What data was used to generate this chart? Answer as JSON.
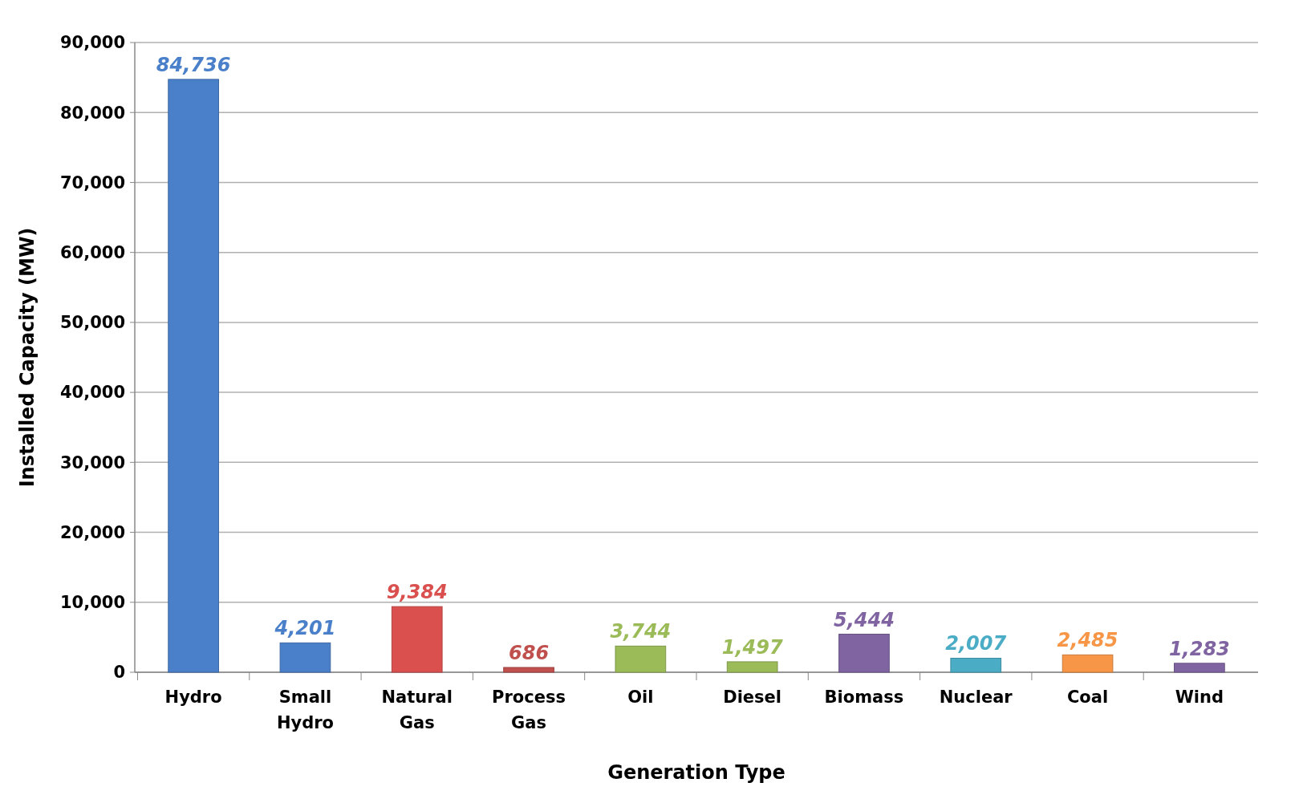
{
  "chart_data": {
    "type": "bar",
    "xlabel": "Generation Type",
    "ylabel": "Installed Capacity (MW)",
    "categories": [
      "Hydro",
      "Small Hydro",
      "Natural Gas",
      "Process Gas",
      "Oil",
      "Diesel",
      "Biomass",
      "Nuclear",
      "Coal",
      "Wind"
    ],
    "values": [
      84736,
      4201,
      9384,
      686,
      3744,
      1497,
      5444,
      2007,
      2485,
      1283
    ],
    "value_labels": [
      "84,736",
      "4,201",
      "9,384",
      "686",
      "3,744",
      "1,497",
      "5,444",
      "2,007",
      "2,485",
      "1,283"
    ],
    "colors": [
      "#4a7fc9",
      "#4a7fc9",
      "#d9504f",
      "#c0504d",
      "#9bbb59",
      "#9bbb59",
      "#8064a2",
      "#4bacc6",
      "#f79646",
      "#8064a2"
    ],
    "ylim": [
      0,
      90000
    ],
    "yticks": [
      {
        "value": 0,
        "label": "0"
      },
      {
        "value": 10000,
        "label": "10,000"
      },
      {
        "value": 20000,
        "label": "20,000"
      },
      {
        "value": 30000,
        "label": "30,000"
      },
      {
        "value": 40000,
        "label": "40,000"
      },
      {
        "value": 50000,
        "label": "50,000"
      },
      {
        "value": 60000,
        "label": "60,000"
      },
      {
        "value": 70000,
        "label": "70,000"
      },
      {
        "value": 80000,
        "label": "80,000"
      },
      {
        "value": 90000,
        "label": "90,000"
      }
    ],
    "grid": "y"
  }
}
